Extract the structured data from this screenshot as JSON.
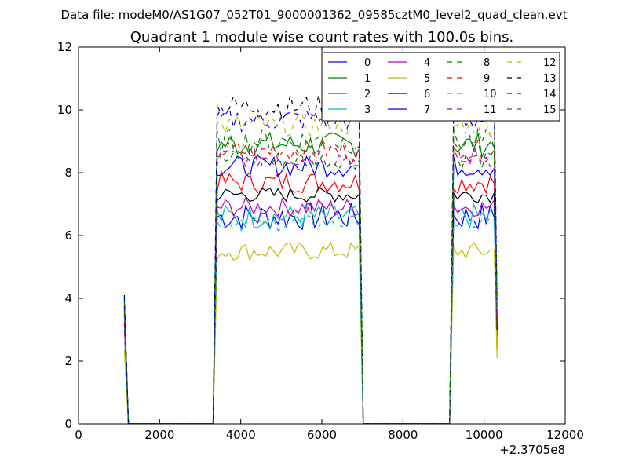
{
  "figure": {
    "suptitle": "Data file: modeM0/AS1G07_052T01_9000001362_09585cztM0_level2_quad_clean.evt"
  },
  "chart_data": {
    "type": "line",
    "title": "Quadrant 1 module wise count rates with 100.0s bins.",
    "xlabel": "",
    "ylabel": "",
    "x_offset_label": "+2.3705e8",
    "xlim": [
      0,
      12000
    ],
    "ylim": [
      0,
      12
    ],
    "xticks": [
      0,
      2000,
      4000,
      6000,
      8000,
      10000,
      12000
    ],
    "xtick_labels": [
      "0",
      "2000",
      "4000",
      "6000",
      "8000",
      "10000",
      "12000"
    ],
    "yticks": [
      0,
      2,
      4,
      6,
      8,
      10,
      12
    ],
    "ytick_labels": [
      "0",
      "2",
      "4",
      "6",
      "8",
      "10",
      "12"
    ],
    "grid": false,
    "legend_position": "top-right",
    "legend_columns": 4,
    "segments": [
      {
        "type": "point",
        "x": 1130
      },
      {
        "type": "drop",
        "x": 1230
      },
      {
        "type": "flat",
        "from": 1230,
        "to": 3320
      },
      {
        "type": "rise",
        "x": 3320
      },
      {
        "type": "active",
        "from": 3420,
        "to": 6920,
        "step": 100
      },
      {
        "type": "drop",
        "x": 7020
      },
      {
        "type": "flat",
        "from": 7020,
        "to": 9150
      },
      {
        "type": "rise",
        "x": 9150
      },
      {
        "type": "active",
        "from": 9250,
        "to": 10250,
        "step": 100
      },
      {
        "type": "end",
        "x": 10320
      }
    ],
    "series": [
      {
        "name": "0",
        "color": "#0000ff",
        "dash": "solid",
        "level": 6.6,
        "jitter": 0.45,
        "start": 3.2,
        "end": 3.0
      },
      {
        "name": "1",
        "color": "#008000",
        "dash": "solid",
        "level": 8.9,
        "jitter": 0.4,
        "start": 3.5,
        "end": 2.8
      },
      {
        "name": "2",
        "color": "#ff0000",
        "dash": "solid",
        "level": 7.7,
        "jitter": 0.35,
        "start": 3.3,
        "end": 2.4
      },
      {
        "name": "3",
        "color": "#00bfbf",
        "dash": "solid",
        "level": 6.6,
        "jitter": 0.4,
        "start": 3.0,
        "end": 3.1
      },
      {
        "name": "4",
        "color": "#bf00bf",
        "dash": "solid",
        "level": 6.9,
        "jitter": 0.3,
        "start": 3.1,
        "end": 3.3
      },
      {
        "name": "5",
        "color": "#bfbf00",
        "dash": "solid",
        "level": 5.5,
        "jitter": 0.3,
        "start": 2.4,
        "end": 2.1
      },
      {
        "name": "6",
        "color": "#000000",
        "dash": "solid",
        "level": 7.3,
        "jitter": 0.25,
        "start": 3.6,
        "end": 3.0
      },
      {
        "name": "7",
        "color": "#0000ff",
        "dash": "solid",
        "level": 8.2,
        "jitter": 0.35,
        "start": 3.7,
        "end": 3.4
      },
      {
        "name": "8",
        "color": "#008000",
        "dash": "dashed",
        "level": 8.4,
        "jitter": 0.3,
        "start": 3.8,
        "end": 3.4
      },
      {
        "name": "9",
        "color": "#ff0000",
        "dash": "dashed",
        "level": 8.7,
        "jitter": 0.35,
        "start": 3.9,
        "end": 3.2
      },
      {
        "name": "10",
        "color": "#00bfbf",
        "dash": "dashed",
        "level": 6.4,
        "jitter": 0.25,
        "start": 3.4,
        "end": 3.6
      },
      {
        "name": "11",
        "color": "#bf00bf",
        "dash": "dashed",
        "level": 8.5,
        "jitter": 0.35,
        "start": 3.8,
        "end": 3.5
      },
      {
        "name": "12",
        "color": "#bfbf00",
        "dash": "dashed",
        "level": 9.5,
        "jitter": 0.35,
        "start": 4.0,
        "end": 3.7
      },
      {
        "name": "13",
        "color": "#000000",
        "dash": "dashed",
        "level": 10.1,
        "jitter": 0.4,
        "start": 4.1,
        "end": 3.9
      },
      {
        "name": "14",
        "color": "#0000ff",
        "dash": "dashed",
        "level": 9.7,
        "jitter": 0.4,
        "start": 4.0,
        "end": 3.8
      },
      {
        "name": "15",
        "color": "#008000",
        "dash": "dashed",
        "level": 9.0,
        "jitter": 0.4,
        "start": 3.9,
        "end": 3.6
      }
    ]
  }
}
